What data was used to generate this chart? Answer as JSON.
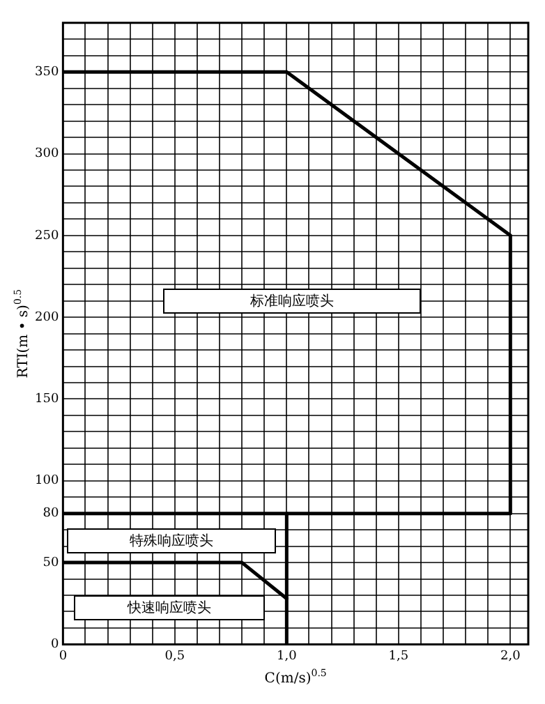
{
  "chart_data": {
    "type": "line",
    "xlabel": "C(m/s)$^{0.5}$",
    "ylabel": "RTI(m • s)$^{0.5}$",
    "xlim": [
      0,
      2.08
    ],
    "ylim": [
      0,
      380
    ],
    "xticks": [
      0,
      {
        "value": 0.1,
        "label": null
      },
      {
        "value": 0.2,
        "label": null
      },
      {
        "value": 0.3,
        "label": null
      },
      {
        "value": 0.4,
        "label": null
      },
      {
        "value": 0.5,
        "label": "0,5"
      },
      {
        "value": 0.6,
        "label": null
      },
      {
        "value": 0.7,
        "label": null
      },
      {
        "value": 0.8,
        "label": null
      },
      {
        "value": 0.9,
        "label": null
      },
      {
        "value": 1.0,
        "label": "1,0"
      },
      {
        "value": 1.1,
        "label": null
      },
      {
        "value": 1.2,
        "label": null
      },
      {
        "value": 1.3,
        "label": null
      },
      {
        "value": 1.4,
        "label": null
      },
      {
        "value": 1.5,
        "label": "1,5"
      },
      {
        "value": 1.6,
        "label": null
      },
      {
        "value": 1.7,
        "label": null
      },
      {
        "value": 1.8,
        "label": null
      },
      {
        "value": 1.9,
        "label": null
      },
      {
        "value": 2.0,
        "label": "2,0"
      }
    ],
    "yticks": [
      0,
      {
        "value": 10,
        "label": null
      },
      {
        "value": 20,
        "label": null
      },
      {
        "value": 30,
        "label": null
      },
      {
        "value": 40,
        "label": null
      },
      50,
      {
        "value": 60,
        "label": null
      },
      {
        "value": 70,
        "label": null
      },
      80,
      {
        "value": 90,
        "label": null
      },
      100,
      {
        "value": 110,
        "label": null
      },
      {
        "value": 120,
        "label": null
      },
      {
        "value": 130,
        "label": null
      },
      {
        "value": 140,
        "label": null
      },
      150,
      {
        "value": 160,
        "label": null
      },
      {
        "value": 170,
        "label": null
      },
      {
        "value": 180,
        "label": null
      },
      {
        "value": 190,
        "label": null
      },
      200,
      {
        "value": 210,
        "label": null
      },
      {
        "value": 220,
        "label": null
      },
      {
        "value": 230,
        "label": null
      },
      {
        "value": 240,
        "label": null
      },
      250,
      {
        "value": 260,
        "label": null
      },
      {
        "value": 270,
        "label": null
      },
      {
        "value": 280,
        "label": null
      },
      {
        "value": 290,
        "label": null
      },
      300,
      {
        "value": 310,
        "label": null
      },
      {
        "value": 320,
        "label": null
      },
      {
        "value": 330,
        "label": null
      },
      {
        "value": 340,
        "label": null
      },
      350,
      {
        "value": 360,
        "label": null
      },
      {
        "value": 370,
        "label": null
      }
    ],
    "series": [
      {
        "color": "#000000",
        "x": [
          0,
          1.0,
          2.0,
          2.0,
          0
        ],
        "values": [
          350,
          350,
          250,
          80,
          80
        ]
      },
      {
        "color": "#000000",
        "x": [
          1.0,
          1.0
        ],
        "values": [
          80,
          0
        ]
      },
      {
        "color": "#000000",
        "x": [
          0,
          0.8,
          1.0
        ],
        "values": [
          50,
          50,
          28
        ]
      }
    ],
    "annotations": [
      "标准响应喷头",
      "特殊响应喷头",
      "快速响应喷头"
    ],
    "grid": true,
    "marker": "none",
    "line_style": "solid",
    "legend": false
  }
}
